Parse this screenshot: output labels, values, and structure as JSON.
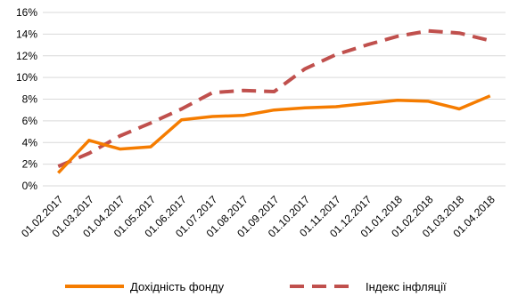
{
  "chart_data": {
    "type": "line",
    "title": "",
    "xlabel": "",
    "ylabel": "",
    "x": [
      "01.02.2017",
      "01.03.2017",
      "01.04.2017",
      "01.05.2017",
      "01.06.2017",
      "01.07.2017",
      "01.08.2017",
      "01.09.2017",
      "01.10.2017",
      "01.11.2017",
      "01.12.2017",
      "01.01.2018",
      "01.02.2018",
      "01.03.2018",
      "01.04.2018"
    ],
    "ylim": [
      0,
      0.16
    ],
    "y_ticks": [
      {
        "value": 0.0,
        "label": "0%"
      },
      {
        "value": 0.02,
        "label": "2%"
      },
      {
        "value": 0.04,
        "label": "4%"
      },
      {
        "value": 0.06,
        "label": "6%"
      },
      {
        "value": 0.08,
        "label": "8%"
      },
      {
        "value": 0.1,
        "label": "10%"
      },
      {
        "value": 0.12,
        "label": "12%"
      },
      {
        "value": 0.14,
        "label": "14%"
      },
      {
        "value": 0.16,
        "label": "16%"
      }
    ],
    "grid": true,
    "legend_position": "bottom",
    "series": [
      {
        "name": "Дохідність фонду",
        "color": "#f57c00",
        "style": "solid",
        "values": [
          0.012,
          0.042,
          0.034,
          0.036,
          0.061,
          0.064,
          0.065,
          0.07,
          0.072,
          0.073,
          0.076,
          0.079,
          0.078,
          0.071,
          0.083
        ]
      },
      {
        "name": "Індекс інфляції",
        "color": "#c0504d",
        "style": "dashed",
        "values": [
          0.018,
          0.03,
          0.046,
          0.058,
          0.071,
          0.086,
          0.088,
          0.087,
          0.108,
          0.121,
          0.13,
          0.138,
          0.143,
          0.141,
          0.134
        ]
      }
    ]
  }
}
